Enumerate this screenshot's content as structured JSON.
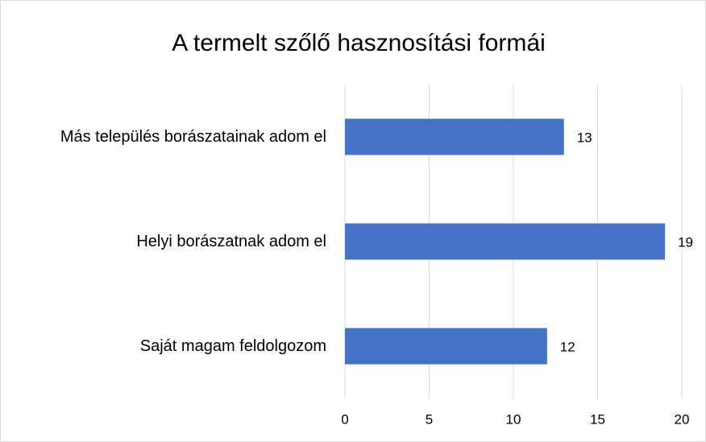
{
  "chart_data": {
    "type": "bar",
    "orientation": "horizontal",
    "title": "A termelt szőlő hasznosítási formái",
    "categories": [
      "Más település borászatainak adom el",
      "Helyi borászatnak adom el",
      "Saját magam feldolgozom"
    ],
    "values": [
      13,
      19,
      12
    ],
    "color": "#4472c4",
    "xlim": [
      0,
      20
    ],
    "xticks": [
      0,
      5,
      10,
      15,
      20
    ],
    "grid": true
  }
}
